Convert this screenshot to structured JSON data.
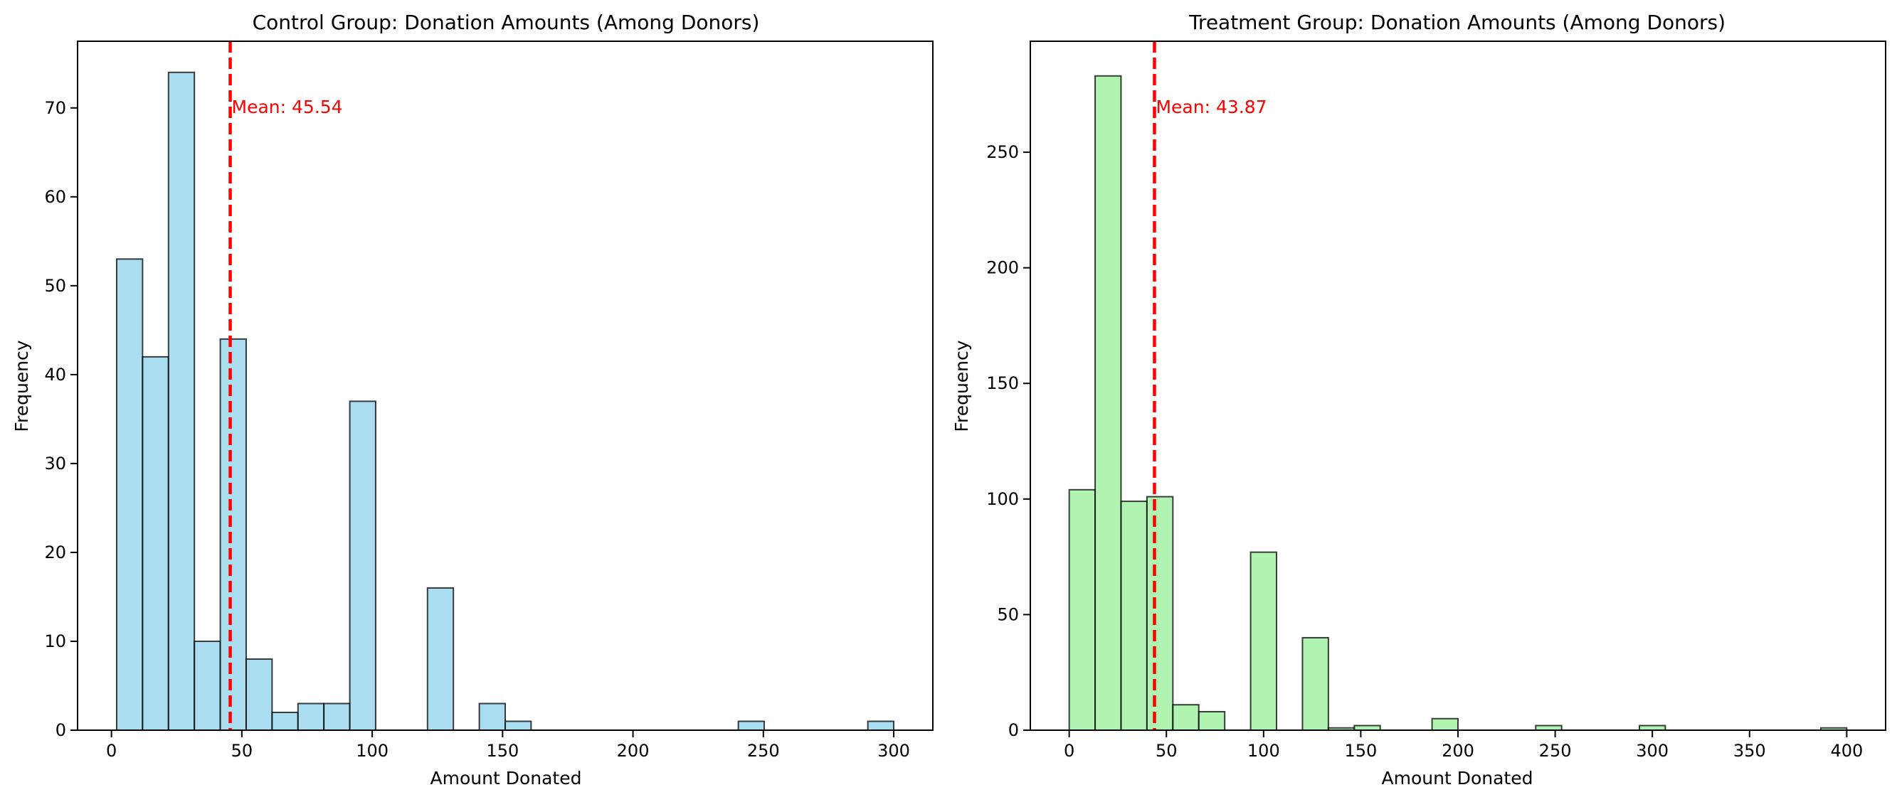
{
  "chart_data": [
    {
      "type": "bar",
      "title": "Control Group: Donation Amounts (Among Donors)",
      "xlabel": "Amount Donated",
      "ylabel": "Frequency",
      "xlim": [
        -13,
        315
      ],
      "ylim": [
        0,
        77.5
      ],
      "xticks": [
        0,
        50,
        100,
        150,
        200,
        250,
        300
      ],
      "yticks": [
        0,
        10,
        20,
        30,
        40,
        50,
        60,
        70
      ],
      "bin_width": 9.93,
      "bins": [
        {
          "x0": 2.0,
          "count": 53
        },
        {
          "x0": 11.93,
          "count": 42
        },
        {
          "x0": 21.87,
          "count": 74
        },
        {
          "x0": 31.8,
          "count": 10
        },
        {
          "x0": 41.73,
          "count": 44
        },
        {
          "x0": 51.67,
          "count": 8
        },
        {
          "x0": 61.6,
          "count": 2
        },
        {
          "x0": 71.53,
          "count": 3
        },
        {
          "x0": 81.47,
          "count": 3
        },
        {
          "x0": 91.4,
          "count": 37
        },
        {
          "x0": 121.2,
          "count": 16
        },
        {
          "x0": 141.07,
          "count": 3
        },
        {
          "x0": 151.0,
          "count": 1
        },
        {
          "x0": 240.4,
          "count": 1
        },
        {
          "x0": 290.07,
          "count": 1
        }
      ],
      "mean": 45.54,
      "mean_label": "Mean: 45.54",
      "bar_color": "#87ceeb",
      "mean_color": "#ff0000",
      "grid": false
    },
    {
      "type": "bar",
      "title": "Treatment Group: Donation Amounts (Among Donors)",
      "xlabel": "Amount Donated",
      "ylabel": "Frequency",
      "xlim": [
        -20,
        420
      ],
      "ylim": [
        0,
        298
      ],
      "xticks": [
        0,
        50,
        100,
        150,
        200,
        250,
        300,
        350,
        400
      ],
      "yticks": [
        0,
        50,
        100,
        150,
        200,
        250
      ],
      "bin_width": 13.33,
      "bins": [
        {
          "x0": 0.0,
          "count": 104
        },
        {
          "x0": 13.33,
          "count": 283
        },
        {
          "x0": 26.67,
          "count": 99
        },
        {
          "x0": 40.0,
          "count": 101
        },
        {
          "x0": 53.33,
          "count": 11
        },
        {
          "x0": 66.67,
          "count": 8
        },
        {
          "x0": 93.33,
          "count": 77
        },
        {
          "x0": 120.0,
          "count": 40
        },
        {
          "x0": 133.33,
          "count": 1
        },
        {
          "x0": 146.67,
          "count": 2
        },
        {
          "x0": 186.67,
          "count": 5
        },
        {
          "x0": 240.0,
          "count": 2
        },
        {
          "x0": 293.33,
          "count": 2
        },
        {
          "x0": 386.67,
          "count": 1
        }
      ],
      "mean": 43.87,
      "mean_label": "Mean: 43.87",
      "bar_color": "#90ee90",
      "mean_color": "#ff0000",
      "grid": false
    }
  ]
}
